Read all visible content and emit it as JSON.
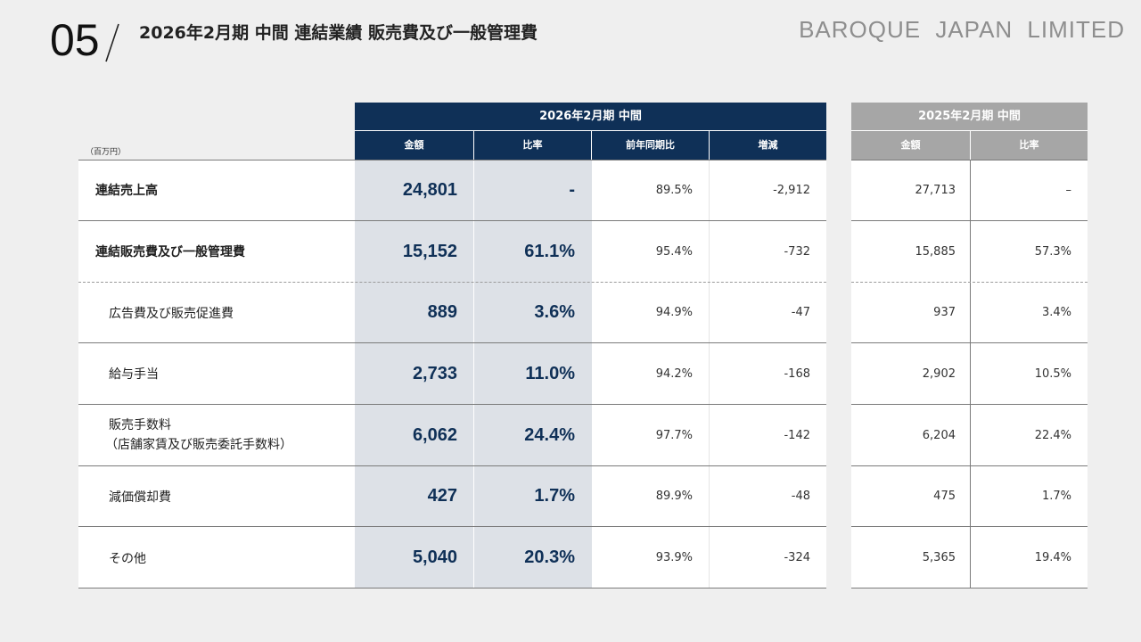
{
  "slide_number": "05",
  "title": "2026年2月期 中間 連結業績 販売費及び一般管理費",
  "brand": "BAROQUE JAPAN LIMITED",
  "unit": "（百万円）",
  "colors": {
    "navy": "#0f3057",
    "gray_header": "#a6a6a6",
    "shade": "#dde1e7"
  },
  "current_period": {
    "label": "2026年2月期 中間",
    "columns": [
      "金額",
      "比率",
      "前年同期比",
      "増減"
    ]
  },
  "previous_period": {
    "label": "2025年2月期 中間",
    "columns": [
      "金額",
      "比率"
    ]
  },
  "rows": [
    {
      "label": "連結売上高",
      "amount": "24,801",
      "ratio": "-",
      "yoy": "89.5%",
      "diff": "-2,912",
      "prev_amount": "27,713",
      "prev_ratio": "–"
    },
    {
      "label": "連結販売費及び一般管理費",
      "amount": "15,152",
      "ratio": "61.1%",
      "yoy": "95.4%",
      "diff": "-732",
      "prev_amount": "15,885",
      "prev_ratio": "57.3%"
    },
    {
      "label": "広告費及び販売促進費",
      "amount": "889",
      "ratio": "3.6%",
      "yoy": "94.9%",
      "diff": "-47",
      "prev_amount": "937",
      "prev_ratio": "3.4%"
    },
    {
      "label": "給与手当",
      "amount": "2,733",
      "ratio": "11.0%",
      "yoy": "94.2%",
      "diff": "-168",
      "prev_amount": "2,902",
      "prev_ratio": "10.5%"
    },
    {
      "label": "販売手数料",
      "label2": "（店舗家賃及び販売委託手数料）",
      "amount": "6,062",
      "ratio": "24.4%",
      "yoy": "97.7%",
      "diff": "-142",
      "prev_amount": "6,204",
      "prev_ratio": "22.4%"
    },
    {
      "label": "減価償却費",
      "amount": "427",
      "ratio": "1.7%",
      "yoy": "89.9%",
      "diff": "-48",
      "prev_amount": "475",
      "prev_ratio": "1.7%"
    },
    {
      "label": "その他",
      "amount": "5,040",
      "ratio": "20.3%",
      "yoy": "93.9%",
      "diff": "-324",
      "prev_amount": "5,365",
      "prev_ratio": "19.4%"
    }
  ]
}
